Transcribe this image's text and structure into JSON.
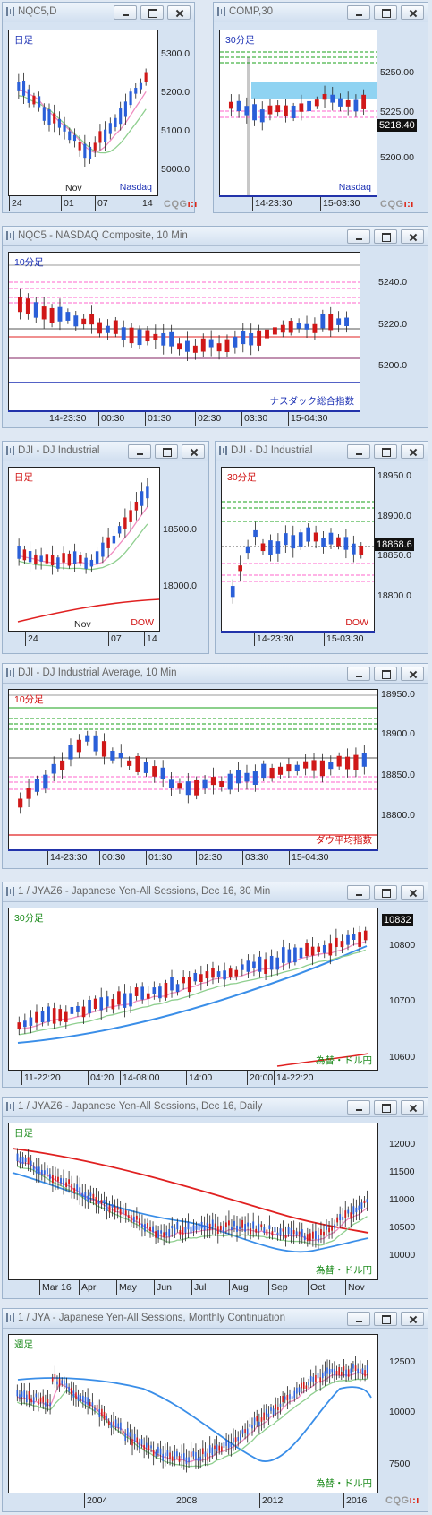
{
  "windows": [
    {
      "id": "nqc5-daily",
      "title": "NQC5,D",
      "chart_label": "日足",
      "chart_label_color": "#1a2fb3",
      "instrument_label": "Nasdaq",
      "instrument_label_color": "#1a2fb3",
      "y_ticks": [
        "5300.0",
        "5200.0",
        "5100.0",
        "5000.0"
      ],
      "x_ticks": [
        "24",
        "01",
        "07",
        "14"
      ],
      "x_sub_label": "Nov",
      "show_cqg": true
    },
    {
      "id": "comp-30min",
      "title": "COMP,30",
      "chart_label": "30分足",
      "chart_label_color": "#1a2fb3",
      "instrument_label": "Nasdaq",
      "instrument_label_color": "#1a2fb3",
      "y_ticks": [
        "5250.00",
        "5225.00",
        "5200.00"
      ],
      "price_tag": "5218.40",
      "x_ticks": [
        "14-23:30",
        "15-03:30"
      ],
      "show_cqg": true
    },
    {
      "id": "nqc5-composite-10min",
      "title": "NQC5 - NASDAQ Composite, 10 Min",
      "chart_label": "10分足",
      "chart_label_color": "#1a2fb3",
      "instrument_label": "ナスダック総合指数",
      "instrument_label_color": "#1a2fb3",
      "y_ticks": [
        "5240.0",
        "5220.0",
        "5200.0"
      ],
      "x_ticks": [
        "14-23:30",
        "00:30",
        "01:30",
        "02:30",
        "03:30",
        "15-04:30"
      ]
    },
    {
      "id": "dji-daily",
      "title": "DJI - DJ Industrial",
      "chart_label": "日足",
      "chart_label_color": "#d01010",
      "instrument_label": "DOW",
      "instrument_label_color": "#d01010",
      "y_ticks": [
        "18500.0",
        "18000.0"
      ],
      "x_ticks": [
        "24",
        "07",
        "14"
      ],
      "x_sub_label": "Nov"
    },
    {
      "id": "dji-30min",
      "title": "DJI - DJ Industrial",
      "chart_label": "30分足",
      "chart_label_color": "#d01010",
      "instrument_label": "DOW",
      "instrument_label_color": "#d01010",
      "y_ticks": [
        "18950.0",
        "18900.0",
        "18850.0",
        "18800.0"
      ],
      "price_tag": "18868.6",
      "x_ticks": [
        "14-23:30",
        "15-03:30"
      ]
    },
    {
      "id": "dji-10min",
      "title": "DJI - DJ Industrial Average, 10 Min",
      "chart_label": "10分足",
      "chart_label_color": "#d01010",
      "instrument_label": "ダウ平均指数",
      "instrument_label_color": "#d01010",
      "y_ticks": [
        "18950.0",
        "18900.0",
        "18850.0",
        "18800.0"
      ],
      "x_ticks": [
        "14-23:30",
        "00:30",
        "01:30",
        "02:30",
        "03:30",
        "15-04:30"
      ]
    },
    {
      "id": "jyaz6-30min",
      "title": "1 / JYAZ6 - Japanese Yen-All Sessions, Dec 16, 30 Min",
      "chart_label": "30分足",
      "chart_label_color": "#1a8a1a",
      "instrument_label": "為替・ドル円",
      "instrument_label_color": "#1a8a1a",
      "y_ticks": [
        "10800",
        "10700",
        "10600"
      ],
      "price_tag": "10832",
      "x_ticks": [
        "11-22:20",
        "04:20",
        "14-08:00",
        "14:00",
        "20:00",
        "14-22:20"
      ]
    },
    {
      "id": "jyaz6-daily",
      "title": "1 / JYAZ6 - Japanese Yen-All Sessions, Dec 16, Daily",
      "chart_label": "日足",
      "chart_label_color": "#1a8a1a",
      "instrument_label": "為替・ドル円",
      "instrument_label_color": "#1a8a1a",
      "y_ticks": [
        "12000",
        "11500",
        "11000",
        "10500",
        "10000"
      ],
      "x_ticks": [
        "Mar 16",
        "Apr",
        "May",
        "Jun",
        "Jul",
        "Aug",
        "Sep",
        "Oct",
        "Nov"
      ]
    },
    {
      "id": "jya-monthly",
      "title": "1 / JYA - Japanese Yen-All Sessions, Monthly Continuation",
      "chart_label": "週足",
      "chart_label_color": "#1a8a1a",
      "instrument_label": "為替・ドル円",
      "instrument_label_color": "#1a8a1a",
      "y_ticks": [
        "12500",
        "10000",
        "7500"
      ],
      "x_ticks": [
        "2004",
        "2008",
        "2012",
        "2016"
      ],
      "show_cqg": true
    }
  ],
  "cqg_logo": {
    "text": "CQG",
    "mark": "ı:ı"
  },
  "colors": {
    "up_candle": "#2a5fd8",
    "down_candle": "#d01818",
    "ma_short": "#f08cc0",
    "ma_long": "#8fcf8f",
    "ma_blue": "#3a8ee8",
    "ma_red": "#e02020",
    "grid_pink": "#ff66cc",
    "grid_green": "#1aa01a",
    "highlight_box": "#8fd3f2"
  }
}
